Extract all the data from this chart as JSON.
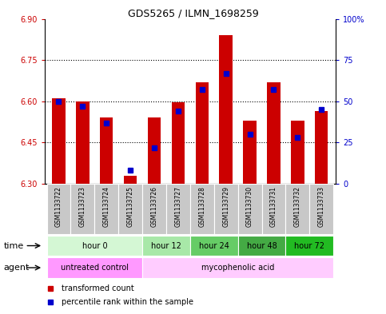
{
  "title": "GDS5265 / ILMN_1698259",
  "samples": [
    "GSM1133722",
    "GSM1133723",
    "GSM1133724",
    "GSM1133725",
    "GSM1133726",
    "GSM1133727",
    "GSM1133728",
    "GSM1133729",
    "GSM1133730",
    "GSM1133731",
    "GSM1133732",
    "GSM1133733"
  ],
  "red_values": [
    6.61,
    6.6,
    6.54,
    6.33,
    6.54,
    6.595,
    6.67,
    6.84,
    6.53,
    6.67,
    6.53,
    6.565
  ],
  "blue_values": [
    50,
    47,
    37,
    8,
    22,
    44,
    57,
    67,
    30,
    57,
    28,
    45
  ],
  "ymin": 6.3,
  "ymax": 6.9,
  "y2min": 0,
  "y2max": 100,
  "yticks": [
    6.3,
    6.45,
    6.6,
    6.75,
    6.9
  ],
  "y2ticks": [
    0,
    25,
    50,
    75,
    100
  ],
  "y2ticklabels": [
    "0",
    "25",
    "50",
    "75",
    "100%"
  ],
  "bar_bottom": 6.3,
  "red_color": "#cc0000",
  "blue_color": "#0000cc",
  "bar_width": 0.55,
  "ytick_color": "#cc0000",
  "y2tick_color": "#0000cc",
  "legend_red": "transformed count",
  "legend_blue": "percentile rank within the sample",
  "time_label": "time",
  "agent_label": "agent",
  "time_group_data": [
    {
      "label": "hour 0",
      "start": 0,
      "end": 3,
      "color": "#d4f7d4"
    },
    {
      "label": "hour 12",
      "start": 4,
      "end": 5,
      "color": "#a8e8a8"
    },
    {
      "label": "hour 24",
      "start": 6,
      "end": 7,
      "color": "#66cc66"
    },
    {
      "label": "hour 48",
      "start": 8,
      "end": 9,
      "color": "#44aa44"
    },
    {
      "label": "hour 72",
      "start": 10,
      "end": 11,
      "color": "#22bb22"
    }
  ],
  "agent_group_data": [
    {
      "label": "untreated control",
      "start": 0,
      "end": 3,
      "color": "#ff99ff"
    },
    {
      "label": "mycophenolic acid",
      "start": 4,
      "end": 11,
      "color": "#ffccff"
    }
  ]
}
